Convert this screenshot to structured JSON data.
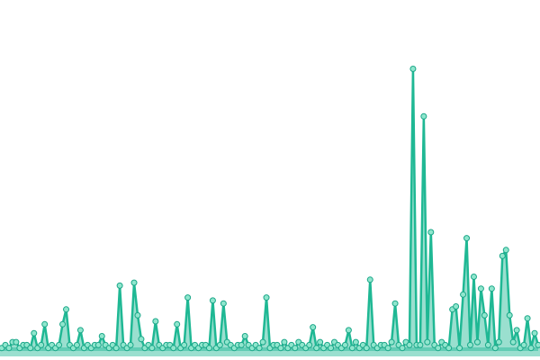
{
  "chart_data": {
    "type": "line",
    "series": [
      {
        "color": "#1fb894",
        "values": [
          1,
          2,
          1,
          3,
          3,
          1,
          2,
          2,
          1,
          6,
          1,
          2,
          9,
          1,
          2,
          1,
          2,
          9,
          14,
          2,
          1,
          2,
          7,
          1,
          2,
          1,
          2,
          2,
          5,
          2,
          1,
          2,
          1,
          22,
          2,
          1,
          2,
          23,
          12,
          4,
          1,
          2,
          1,
          10,
          2,
          1,
          2,
          2,
          1,
          9,
          1,
          2,
          18,
          1,
          2,
          1,
          2,
          2,
          1,
          17,
          1,
          2,
          16,
          3,
          2,
          1,
          2,
          2,
          5,
          2,
          1,
          2,
          1,
          3,
          18,
          1,
          2,
          2,
          1,
          3,
          1,
          2,
          1,
          3,
          2,
          1,
          2,
          8,
          1,
          3,
          1,
          2,
          1,
          3,
          2,
          1,
          2,
          7,
          1,
          3,
          1,
          2,
          1,
          24,
          2,
          1,
          2,
          2,
          1,
          3,
          16,
          2,
          1,
          3,
          2,
          95,
          2,
          2,
          79,
          3,
          40,
          2,
          1,
          3,
          2,
          1,
          14,
          15,
          1,
          19,
          38,
          2,
          25,
          3,
          21,
          12,
          2,
          21,
          1,
          3,
          32,
          34,
          12,
          3,
          7,
          1,
          2,
          11,
          1,
          6,
          2
        ]
      }
    ],
    "ylim": [
      0,
      100
    ],
    "area": true,
    "markers": true
  }
}
